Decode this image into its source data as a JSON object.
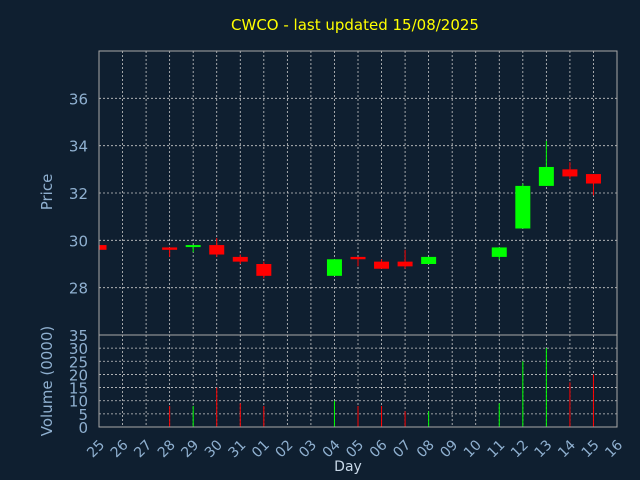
{
  "title": "CWCO - last updated 15/08/2025",
  "colors": {
    "up": "#00ff00",
    "down": "#ff0000",
    "background": "#0f1f30",
    "title": "#ffff00",
    "axis_text": "#8fb0d0"
  },
  "chart_data": {
    "type": "candlestick",
    "xlabel": "Day",
    "price_ylabel": "Price",
    "volume_ylabel": "Volume (0000)",
    "price_ylim": [
      26,
      38
    ],
    "price_ticks": [
      28,
      30,
      32,
      34,
      36
    ],
    "volume_ylim": [
      0,
      35
    ],
    "volume_ticks": [
      0,
      5,
      10,
      15,
      20,
      25,
      30,
      35
    ],
    "grid": true,
    "categories": [
      "25",
      "26",
      "27",
      "28",
      "29",
      "30",
      "31",
      "01",
      "02",
      "03",
      "04",
      "05",
      "06",
      "07",
      "08",
      "09",
      "10",
      "11",
      "12",
      "13",
      "14",
      "15",
      "16"
    ],
    "ohlc": [
      {
        "o": 29.8,
        "h": 29.8,
        "l": 29.6,
        "c": 29.6,
        "v": 0
      },
      null,
      null,
      {
        "o": 29.7,
        "h": 29.7,
        "l": 29.3,
        "c": 29.6,
        "v": 8
      },
      {
        "o": 29.75,
        "h": 29.8,
        "l": 29.5,
        "c": 29.8,
        "v": 8
      },
      {
        "o": 29.8,
        "h": 30.1,
        "l": 29.3,
        "c": 29.4,
        "v": 15
      },
      {
        "o": 29.3,
        "h": 29.4,
        "l": 29.0,
        "c": 29.1,
        "v": 9
      },
      {
        "o": 29.0,
        "h": 29.1,
        "l": 28.4,
        "c": 28.5,
        "v": 8
      },
      null,
      null,
      {
        "o": 28.5,
        "h": 29.2,
        "l": 28.5,
        "c": 29.2,
        "v": 10
      },
      {
        "o": 29.3,
        "h": 29.3,
        "l": 28.9,
        "c": 29.2,
        "v": 8
      },
      {
        "o": 29.1,
        "h": 29.2,
        "l": 28.8,
        "c": 28.8,
        "v": 8
      },
      {
        "o": 29.1,
        "h": 29.6,
        "l": 28.8,
        "c": 28.9,
        "v": 6
      },
      {
        "o": 29.0,
        "h": 29.3,
        "l": 29.0,
        "c": 29.3,
        "v": 6
      },
      null,
      null,
      {
        "o": 29.3,
        "h": 29.7,
        "l": 29.2,
        "c": 29.7,
        "v": 9
      },
      {
        "o": 30.5,
        "h": 32.4,
        "l": 30.5,
        "c": 32.3,
        "v": 25
      },
      {
        "o": 32.3,
        "h": 34.2,
        "l": 32.3,
        "c": 33.1,
        "v": 30
      },
      {
        "o": 33.0,
        "h": 33.3,
        "l": 32.6,
        "c": 32.7,
        "v": 17
      },
      {
        "o": 32.8,
        "h": 32.8,
        "l": 31.9,
        "c": 32.4,
        "v": 20
      },
      null
    ]
  }
}
